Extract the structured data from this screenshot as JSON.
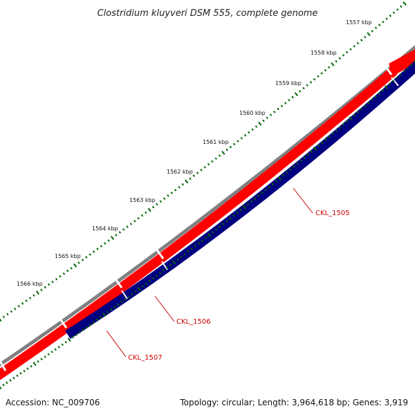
{
  "title": "Clostridium kluyveri DSM 555, complete genome",
  "footer": {
    "accession": "Accession: NC_009706",
    "summary": "Topology: circular; Length: 3,964,618 bp; Genes: 3,919"
  },
  "colors": {
    "backbone": "#808080",
    "forward_gene": "#ff0000",
    "reverse_gene": "#000080",
    "ticks": "#006600",
    "label": "#cc0000"
  },
  "ruler": {
    "unit": "kbp",
    "ticks": [
      {
        "label": "1557 kbp",
        "kbp": 1557
      },
      {
        "label": "1558 kbp",
        "kbp": 1558
      },
      {
        "label": "1559 kbp",
        "kbp": 1559
      },
      {
        "label": "1560 kbp",
        "kbp": 1560
      },
      {
        "label": "1561 kbp",
        "kbp": 1561
      },
      {
        "label": "1562 kbp",
        "kbp": 1562
      },
      {
        "label": "1563 kbp",
        "kbp": 1563
      },
      {
        "label": "1564 kbp",
        "kbp": 1564
      },
      {
        "label": "1565 kbp",
        "kbp": 1565
      },
      {
        "label": "1566 kbp",
        "kbp": 1566
      }
    ]
  },
  "genes": [
    {
      "label": "CKL_1505"
    },
    {
      "label": "CKL_1506"
    },
    {
      "label": "CKL_1507"
    }
  ]
}
